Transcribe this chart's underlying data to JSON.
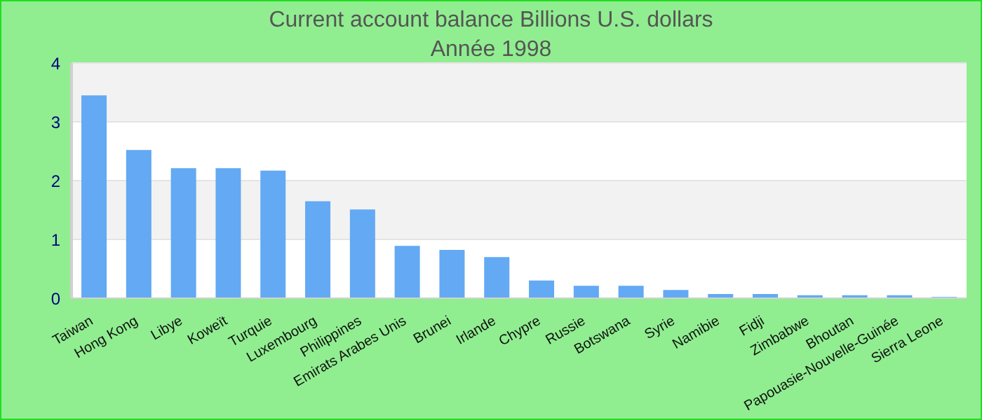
{
  "chart_data": {
    "type": "bar",
    "title": "Current account balance Billions U.S. dollars",
    "subtitle": "Année 1998",
    "categories": [
      "Taiwan",
      "Hong Kong",
      "Libye",
      "Koweït",
      "Turquie",
      "Luxembourg",
      "Philippines",
      "Emirats Arabes Unis",
      "Brunei",
      "Irlande",
      "Chypre",
      "Russie",
      "Botswana",
      "Syrie",
      "Namibie",
      "Fidji",
      "Zimbabwe",
      "Bhoutan",
      "Papouasie-Nouvelle-Guinée",
      "Sierra Leone"
    ],
    "values": [
      3.45,
      2.52,
      2.21,
      2.21,
      2.17,
      1.65,
      1.51,
      0.89,
      0.82,
      0.7,
      0.3,
      0.21,
      0.21,
      0.14,
      0.07,
      0.07,
      0.05,
      0.05,
      0.05,
      0.02
    ],
    "color": "#63a9f4",
    "ylim": [
      0,
      4
    ],
    "yticks": [
      0,
      1,
      2,
      3,
      4
    ],
    "grid": "y"
  }
}
